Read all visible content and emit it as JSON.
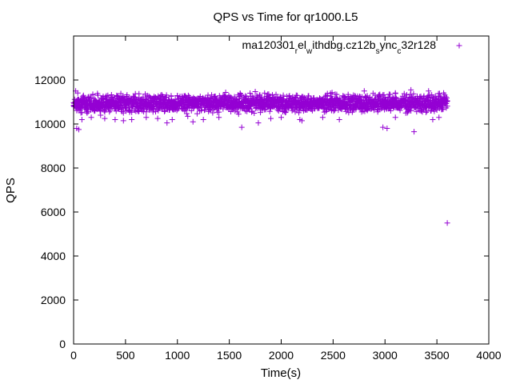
{
  "chart_data": {
    "type": "scatter",
    "title": "QPS vs Time for qr1000.L5",
    "xlabel": "Time(s)",
    "ylabel": "QPS",
    "xlim": [
      0,
      4000
    ],
    "ylim": [
      0,
      14000
    ],
    "xticks": [
      0,
      500,
      1000,
      1500,
      2000,
      2500,
      3000,
      3500,
      4000
    ],
    "yticks": [
      0,
      2000,
      4000,
      6000,
      8000,
      10000,
      12000
    ],
    "grid": false,
    "legend_position": "top-right",
    "marker": "plus",
    "color": "#9400D3",
    "legend": {
      "parts": [
        {
          "text": "ma120301",
          "sub": false
        },
        {
          "text": "r",
          "sub": true
        },
        {
          "text": "el",
          "sub": false
        },
        {
          "text": "w",
          "sub": true
        },
        {
          "text": "ithdbg.cz12b",
          "sub": false
        },
        {
          "text": "s",
          "sub": true
        },
        {
          "text": "ync",
          "sub": false
        },
        {
          "text": "c",
          "sub": true
        },
        {
          "text": "32r128",
          "sub": false
        }
      ]
    },
    "series": [
      {
        "band": {
          "x_start": 0,
          "x_end": 3600,
          "x_step": 5,
          "y_low": 10400,
          "y_high": 11500
        },
        "outliers": [
          {
            "x": 20,
            "y": 11500
          },
          {
            "x": 30,
            "y": 9800
          },
          {
            "x": 50,
            "y": 9750
          },
          {
            "x": 80,
            "y": 10200
          },
          {
            "x": 130,
            "y": 10500
          },
          {
            "x": 170,
            "y": 10300
          },
          {
            "x": 260,
            "y": 10400
          },
          {
            "x": 300,
            "y": 10250
          },
          {
            "x": 400,
            "y": 10200
          },
          {
            "x": 480,
            "y": 10150
          },
          {
            "x": 560,
            "y": 10200
          },
          {
            "x": 700,
            "y": 10300
          },
          {
            "x": 810,
            "y": 10250
          },
          {
            "x": 900,
            "y": 10050
          },
          {
            "x": 950,
            "y": 10200
          },
          {
            "x": 1100,
            "y": 10350
          },
          {
            "x": 1150,
            "y": 10100
          },
          {
            "x": 1250,
            "y": 10200
          },
          {
            "x": 1400,
            "y": 10300
          },
          {
            "x": 1620,
            "y": 9850
          },
          {
            "x": 1700,
            "y": 11400
          },
          {
            "x": 1780,
            "y": 10050
          },
          {
            "x": 1900,
            "y": 10250
          },
          {
            "x": 2000,
            "y": 10300
          },
          {
            "x": 2180,
            "y": 10200
          },
          {
            "x": 2200,
            "y": 10150
          },
          {
            "x": 2400,
            "y": 10300
          },
          {
            "x": 2560,
            "y": 10200
          },
          {
            "x": 2800,
            "y": 11500
          },
          {
            "x": 2980,
            "y": 9850
          },
          {
            "x": 3020,
            "y": 9800
          },
          {
            "x": 3100,
            "y": 10300
          },
          {
            "x": 3200,
            "y": 10500
          },
          {
            "x": 3250,
            "y": 11550
          },
          {
            "x": 3280,
            "y": 9650
          },
          {
            "x": 3420,
            "y": 11500
          },
          {
            "x": 3460,
            "y": 10200
          },
          {
            "x": 3520,
            "y": 10300
          },
          {
            "x": 3600,
            "y": 5500
          }
        ]
      }
    ]
  }
}
